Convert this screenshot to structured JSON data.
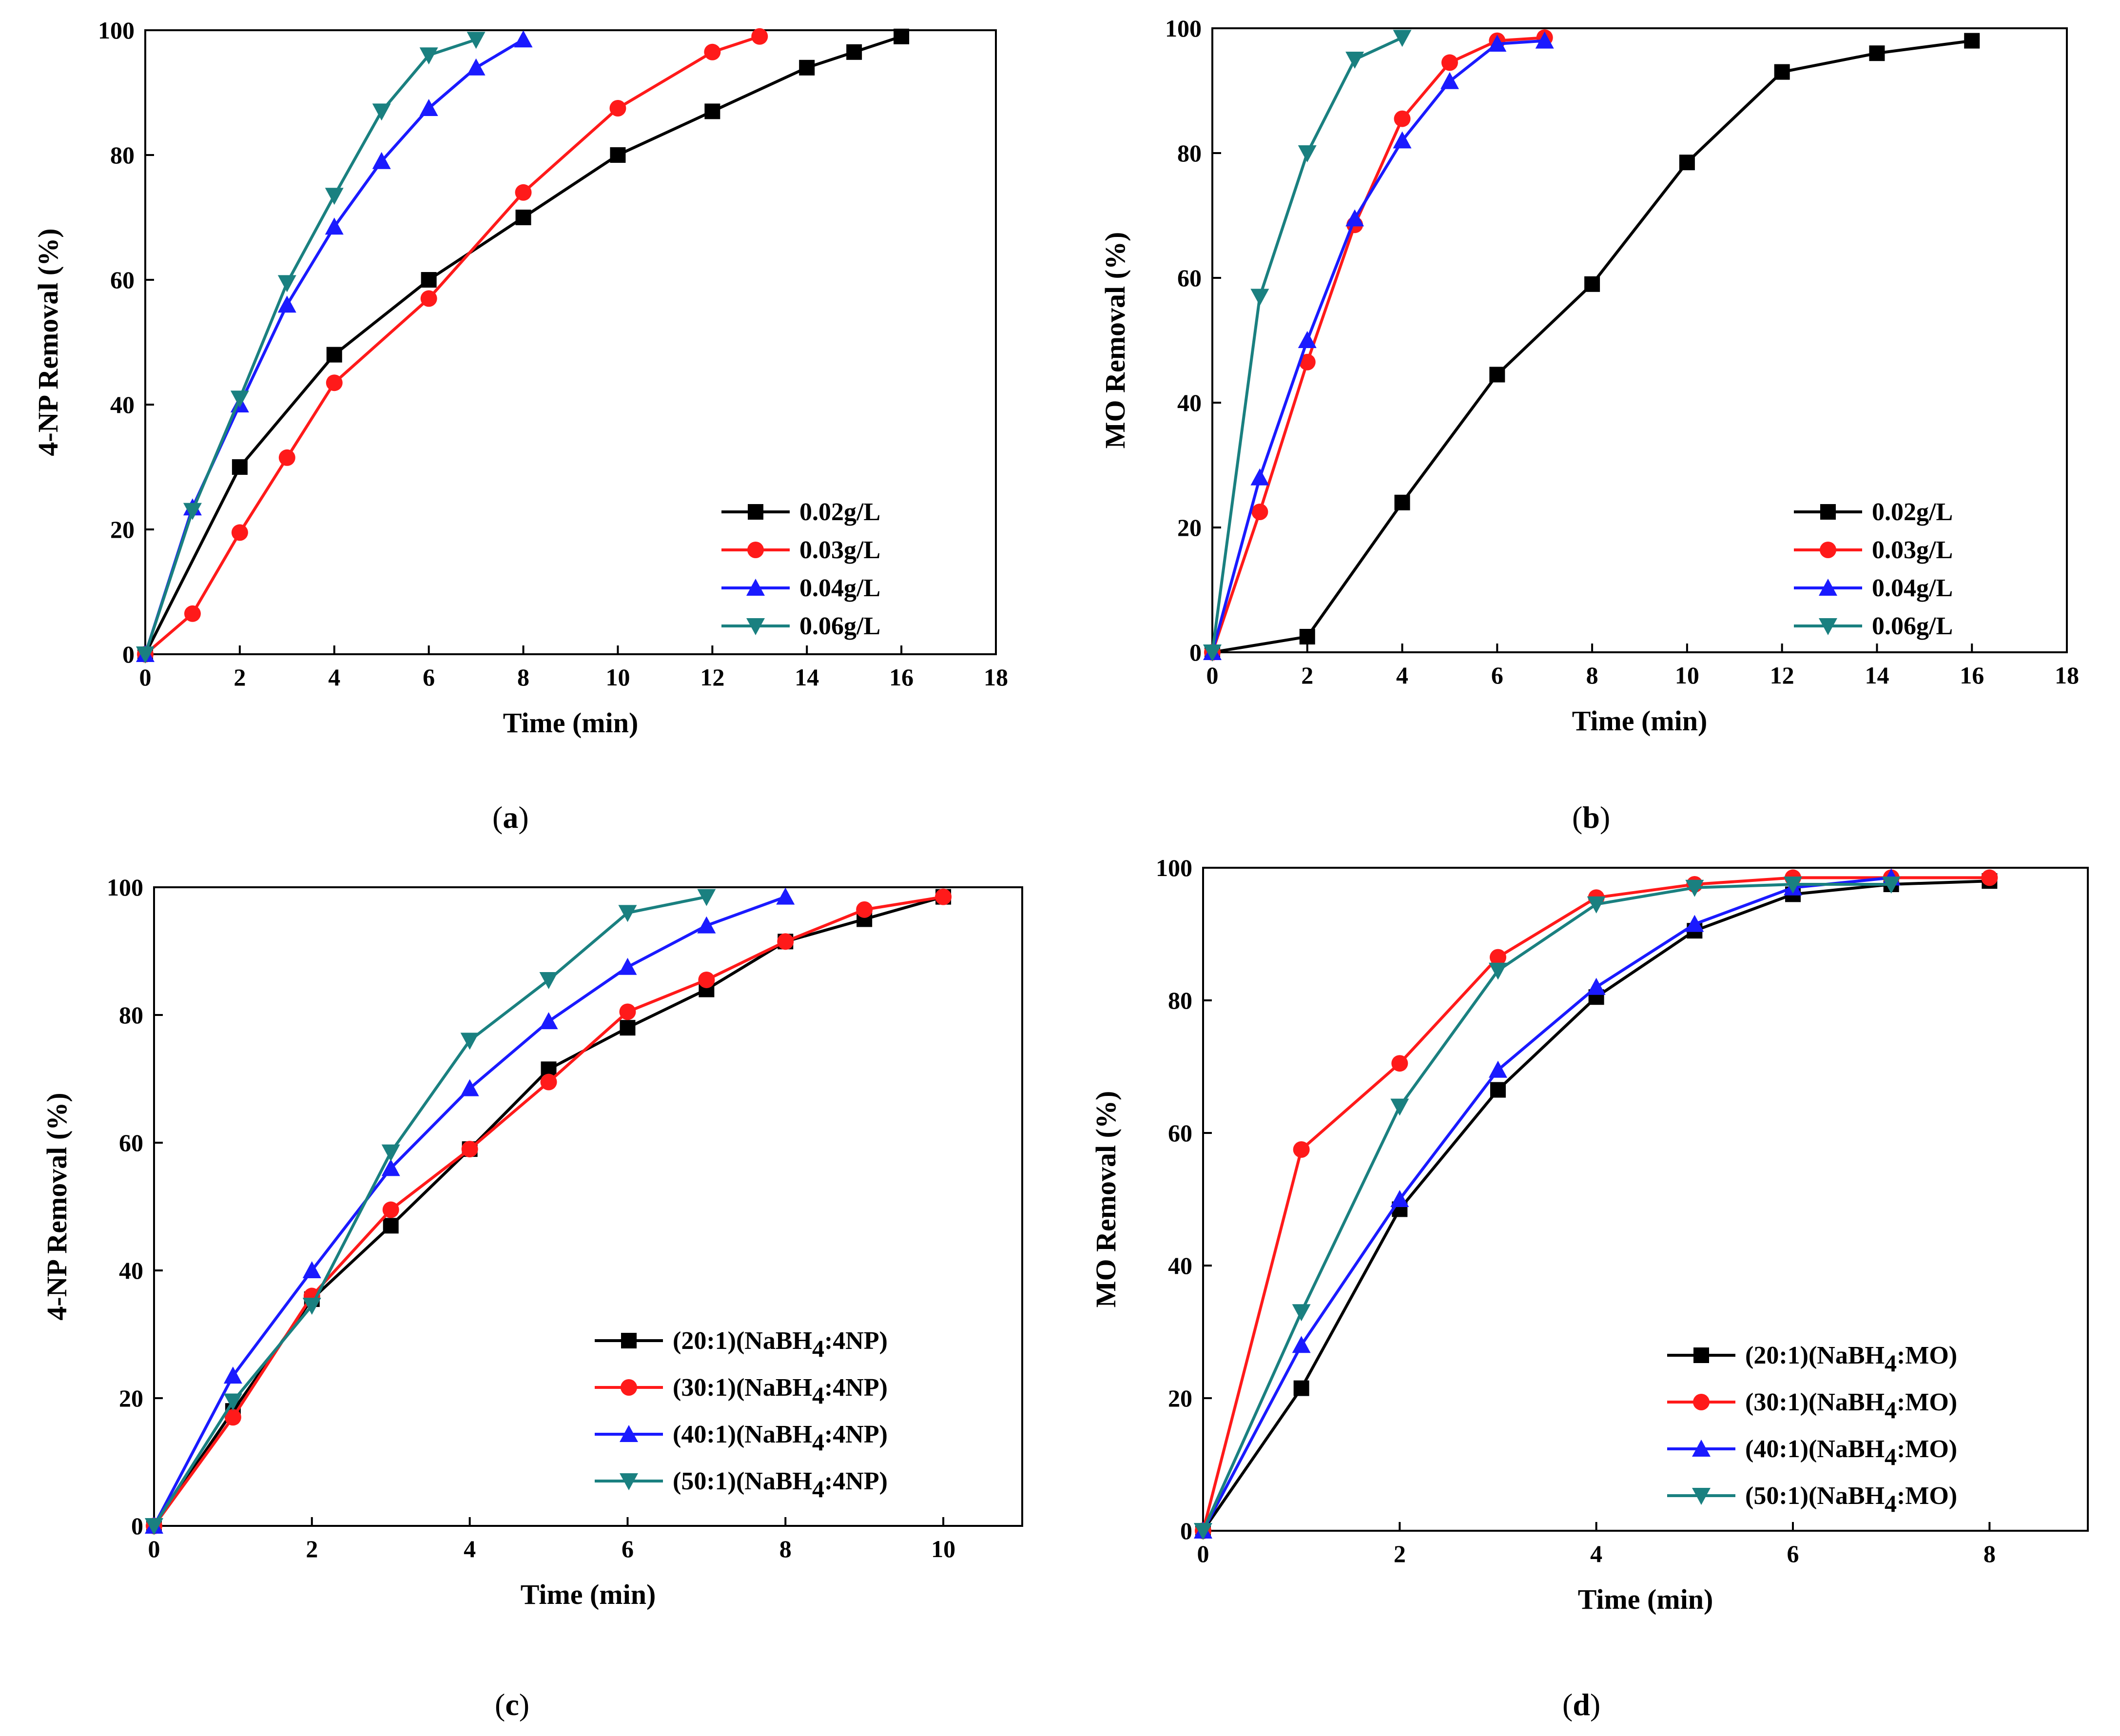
{
  "colors": {
    "black": "#000000",
    "red": "#ff1a1a",
    "blue": "#1a1aff",
    "teal": "#1a8080"
  },
  "chart_data": [
    {
      "panel": "a",
      "type": "line",
      "xlabel": "Time (min)",
      "ylabel": "4-NP Removal (%)",
      "xlim": [
        0,
        18
      ],
      "ylim": [
        0,
        100
      ],
      "xticks": [
        0,
        2,
        4,
        6,
        8,
        10,
        12,
        14,
        16,
        18
      ],
      "yticks": [
        0,
        20,
        40,
        60,
        80,
        100
      ],
      "legend_position": "bottom-right",
      "series": [
        {
          "name": "0.02g/L",
          "color": "#000000",
          "marker": "square",
          "x": [
            0,
            2,
            4,
            6,
            8,
            10,
            12,
            14,
            15,
            16
          ],
          "y": [
            0,
            30,
            48,
            60,
            70,
            80,
            87,
            94,
            96.5,
            99
          ]
        },
        {
          "name": "0.03g/L",
          "color": "#ff1a1a",
          "marker": "circle",
          "x": [
            0,
            1,
            2,
            3,
            4,
            6,
            8,
            10,
            12,
            13
          ],
          "y": [
            0,
            6.5,
            19.5,
            31.5,
            43.5,
            57,
            74,
            87.5,
            96.5,
            99
          ]
        },
        {
          "name": "0.04g/L",
          "color": "#1a1aff",
          "marker": "triangle-up",
          "x": [
            0,
            1,
            2,
            3,
            4,
            5,
            6,
            7,
            8
          ],
          "y": [
            0,
            23.5,
            40,
            56,
            68.5,
            79,
            87.5,
            94,
            98.5
          ]
        },
        {
          "name": "0.06g/L",
          "color": "#1a8080",
          "marker": "triangle-down",
          "x": [
            0,
            1,
            2,
            3,
            4,
            5,
            6,
            7
          ],
          "y": [
            0,
            23,
            41,
            59.5,
            73.5,
            87,
            96,
            98.5
          ]
        }
      ]
    },
    {
      "panel": "b",
      "type": "line",
      "xlabel": "Time (min)",
      "ylabel": "MO Removal (%)",
      "xlim": [
        0,
        18
      ],
      "ylim": [
        0,
        100
      ],
      "xticks": [
        0,
        2,
        4,
        6,
        8,
        10,
        12,
        14,
        16,
        18
      ],
      "yticks": [
        0,
        20,
        40,
        60,
        80,
        100
      ],
      "legend_position": "bottom-right",
      "series": [
        {
          "name": "0.02g/L",
          "color": "#000000",
          "marker": "square",
          "x": [
            0,
            2,
            4,
            6,
            8,
            10,
            12,
            14,
            16
          ],
          "y": [
            0,
            2.5,
            24,
            44.5,
            59,
            78.5,
            93,
            96,
            98
          ]
        },
        {
          "name": "0.03g/L",
          "color": "#ff1a1a",
          "marker": "circle",
          "x": [
            0,
            1,
            2,
            3,
            4,
            5,
            6,
            7
          ],
          "y": [
            0,
            22.5,
            46.5,
            68.5,
            85.5,
            94.5,
            98,
            98.5
          ]
        },
        {
          "name": "0.04g/L",
          "color": "#1a1aff",
          "marker": "triangle-up",
          "x": [
            0,
            1,
            2,
            3,
            4,
            5,
            6,
            7
          ],
          "y": [
            0,
            28,
            50,
            69.5,
            82,
            91.5,
            97.5,
            98
          ]
        },
        {
          "name": "0.06g/L",
          "color": "#1a8080",
          "marker": "triangle-down",
          "x": [
            0,
            1,
            2,
            3,
            4
          ],
          "y": [
            0,
            57,
            80,
            95,
            98.5
          ]
        }
      ]
    },
    {
      "panel": "c",
      "type": "line",
      "xlabel": "Time (min)",
      "ylabel": "4-NP Removal (%)",
      "xlim": [
        0,
        11
      ],
      "ylim": [
        0,
        100
      ],
      "xticks": [
        0,
        2,
        4,
        6,
        8,
        10
      ],
      "yticks": [
        0,
        20,
        40,
        60,
        80,
        100
      ],
      "legend_position": "bottom-right",
      "series": [
        {
          "name": "(20:1)(NaBH4:4NP)",
          "label_main": "(20:1)(NaBH",
          "label_sub": "4",
          "label_tail": ":4NP)",
          "color": "#000000",
          "marker": "square",
          "x": [
            0,
            1,
            2,
            3,
            4,
            5,
            6,
            7,
            8,
            9,
            10
          ],
          "y": [
            0,
            18,
            35.5,
            47,
            59,
            71.5,
            78,
            84,
            91.5,
            95,
            98.5
          ]
        },
        {
          "name": "(30:1)(NaBH4:4NP)",
          "label_main": "(30:1)(NaBH",
          "label_sub": "4",
          "label_tail": ":4NP)",
          "color": "#ff1a1a",
          "marker": "circle",
          "x": [
            0,
            1,
            2,
            3,
            4,
            5,
            6,
            7,
            8,
            9,
            10
          ],
          "y": [
            0,
            17,
            36,
            49.5,
            59,
            69.5,
            80.5,
            85.5,
            91.5,
            96.5,
            98.5
          ]
        },
        {
          "name": "(40:1)(NaBH4:4NP)",
          "label_main": "(40:1)(NaBH",
          "label_sub": "4",
          "label_tail": ":4NP)",
          "color": "#1a1aff",
          "marker": "triangle-up",
          "x": [
            0,
            1,
            2,
            3,
            4,
            5,
            6,
            7,
            8
          ],
          "y": [
            0,
            23.5,
            40,
            56,
            68.5,
            79,
            87.5,
            94,
            98.5
          ]
        },
        {
          "name": "(50:1)(NaBH4:4NP)",
          "label_main": "(50:1)(NaBH",
          "label_sub": "4",
          "label_tail": ":4NP)",
          "color": "#1a8080",
          "marker": "triangle-down",
          "x": [
            0,
            1,
            2,
            3,
            4,
            5,
            6,
            7
          ],
          "y": [
            0,
            19.5,
            34.5,
            58.5,
            76,
            85.5,
            96,
            98.5
          ]
        }
      ]
    },
    {
      "panel": "d",
      "type": "line",
      "xlabel": "Time (min)",
      "ylabel": "MO Removal (%)",
      "xlim": [
        0,
        9
      ],
      "ylim": [
        0,
        100
      ],
      "xticks": [
        0,
        2,
        4,
        6,
        8
      ],
      "yticks": [
        0,
        20,
        40,
        60,
        80,
        100
      ],
      "legend_position": "bottom-right",
      "series": [
        {
          "name": "(20:1)(NaBH4:MO)",
          "label_main": "(20:1)(NaBH",
          "label_sub": "4",
          "label_tail": ":MO)",
          "color": "#000000",
          "marker": "square",
          "x": [
            0,
            1,
            2,
            3,
            4,
            5,
            6,
            7,
            8
          ],
          "y": [
            0,
            21.5,
            48.5,
            66.5,
            80.5,
            90.5,
            96,
            97.5,
            98
          ]
        },
        {
          "name": "(30:1)(NaBH4:MO)",
          "label_main": "(30:1)(NaBH",
          "label_sub": "4",
          "label_tail": ":MO)",
          "color": "#ff1a1a",
          "marker": "circle",
          "x": [
            0,
            1,
            2,
            3,
            4,
            5,
            6,
            7,
            8
          ],
          "y": [
            0,
            57.5,
            70.5,
            86.5,
            95.5,
            97.5,
            98.5,
            98.5,
            98.5
          ]
        },
        {
          "name": "(40:1)(NaBH4:MO)",
          "label_main": "(40:1)(NaBH",
          "label_sub": "4",
          "label_tail": ":MO)",
          "color": "#1a1aff",
          "marker": "triangle-up",
          "x": [
            0,
            1,
            2,
            3,
            4,
            5,
            6,
            7
          ],
          "y": [
            0,
            28,
            50,
            69.5,
            82,
            91.5,
            97,
            98.5
          ]
        },
        {
          "name": "(50:1)(NaBH4:MO)",
          "label_main": "(50:1)(NaBH",
          "label_sub": "4",
          "label_tail": ":MO)",
          "color": "#1a8080",
          "marker": "triangle-down",
          "x": [
            0,
            1,
            2,
            3,
            4,
            5,
            6,
            7
          ],
          "y": [
            0,
            33,
            64,
            84.5,
            94.5,
            97,
            97.5,
            97.5
          ]
        }
      ]
    }
  ],
  "captions": [
    "a",
    "b",
    "c",
    "d"
  ]
}
